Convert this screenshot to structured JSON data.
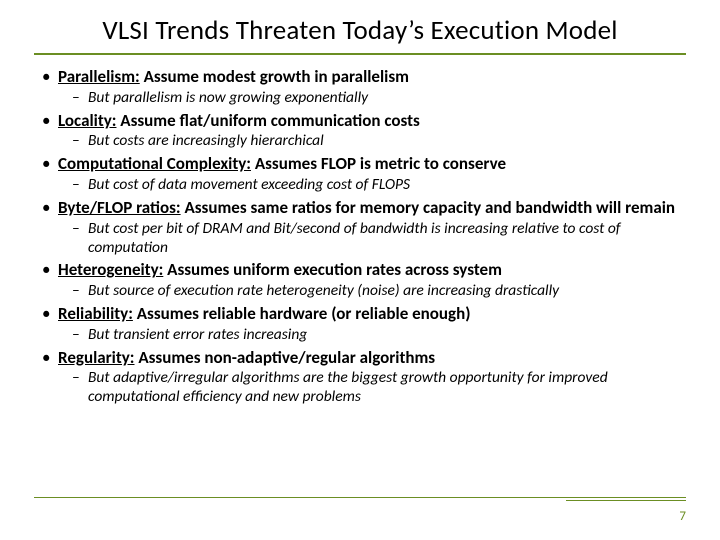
{
  "slide": {
    "title": "VLSI Trends Threaten Today’s Execution Model",
    "page_number": "7",
    "accent_color": "#6b8e23",
    "bullets": [
      {
        "lead": "Parallelism:",
        "rest": " Assume modest growth in parallelism",
        "sub": [
          "But parallelism is now growing exponentially"
        ]
      },
      {
        "lead": "Locality:",
        "rest": " Assume flat/uniform communication costs",
        "sub": [
          "But costs are increasingly hierarchical"
        ]
      },
      {
        "lead": "Computational Complexity:",
        "rest": " Assumes FLOP is metric to conserve",
        "sub": [
          "But cost of data movement exceeding cost of FLOPS"
        ]
      },
      {
        "lead": "Byte/FLOP ratios:",
        "rest": " Assumes same ratios for memory capacity and bandwidth will remain",
        "sub": [
          "But cost per bit of DRAM and Bit/second of bandwidth is increasing relative to cost of computation"
        ]
      },
      {
        "lead": "Heterogeneity:",
        "rest": " Assumes uniform execution rates across system",
        "sub": [
          "But source of execution rate heterogeneity (noise) are increasing drastically"
        ]
      },
      {
        "lead": "Reliability:",
        "rest": " Assumes reliable hardware (or reliable enough)",
        "sub": [
          "But transient error rates increasing"
        ]
      },
      {
        "lead": "Regularity:",
        "rest": " Assumes non-adaptive/regular algorithms",
        "sub": [
          "But adaptive/irregular algorithms are the biggest growth opportunity for improved computational efficiency and new problems"
        ]
      }
    ]
  }
}
